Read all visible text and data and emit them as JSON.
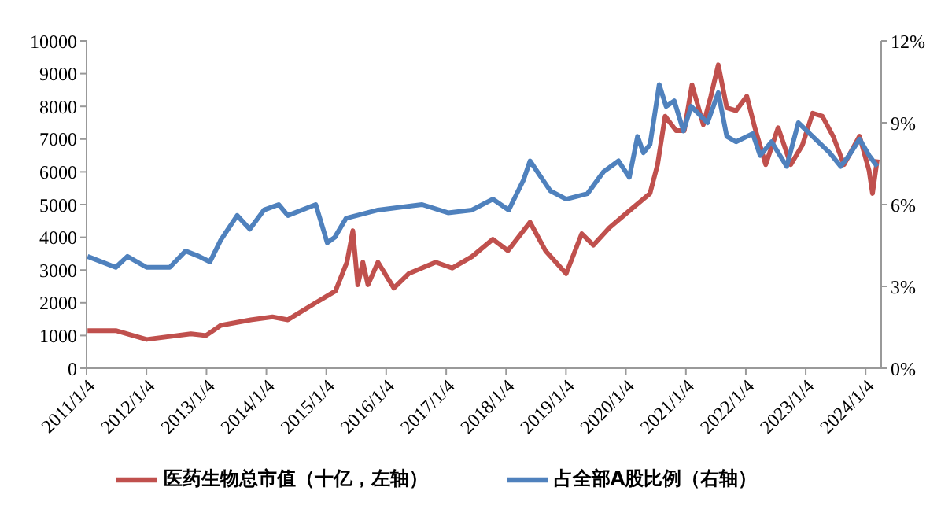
{
  "chart_data": {
    "type": "line",
    "xlim": [
      "2011-01-04",
      "2024-04-08"
    ],
    "xticks": [
      {
        "value": "2011-01-04",
        "label": "2011/1/4"
      },
      {
        "value": "2012-01-04",
        "label": "2012/1/4"
      },
      {
        "value": "2013-01-04",
        "label": "2013/1/4"
      },
      {
        "value": "2014-01-04",
        "label": "2014/1/4"
      },
      {
        "value": "2015-01-04",
        "label": "2015/1/4"
      },
      {
        "value": "2016-01-04",
        "label": "2016/1/4"
      },
      {
        "value": "2017-01-04",
        "label": "2017/1/4"
      },
      {
        "value": "2018-01-04",
        "label": "2018/1/4"
      },
      {
        "value": "2019-01-04",
        "label": "2019/1/4"
      },
      {
        "value": "2020-01-04",
        "label": "2020/1/4"
      },
      {
        "value": "2021-01-04",
        "label": "2021/1/4"
      },
      {
        "value": "2022-01-04",
        "label": "2022/1/4"
      },
      {
        "value": "2023-01-04",
        "label": "2023/1/4"
      },
      {
        "value": "2024-01-04",
        "label": "2024/1/4"
      }
    ],
    "ylim": [
      0,
      10000
    ],
    "yticks": [
      0,
      1000,
      2000,
      3000,
      4000,
      5000,
      6000,
      7000,
      8000,
      9000,
      10000
    ],
    "y2lim": [
      0,
      12
    ],
    "y2ticks": [
      {
        "value": 0,
        "label": "0%"
      },
      {
        "value": 3,
        "label": "3%"
      },
      {
        "value": 6,
        "label": "6%"
      },
      {
        "value": 9,
        "label": "9%"
      },
      {
        "value": 12,
        "label": "12%"
      }
    ],
    "grid": false,
    "legend": "bottom",
    "series": [
      {
        "name": "医药生物总市值（十亿，左轴）",
        "color": "#c0504d",
        "x": [
          "2011-01-10",
          "2011-07-01",
          "2012-01-05",
          "2012-10-01",
          "2013-01-01",
          "2013-04-01",
          "2013-10-01",
          "2014-02-10",
          "2014-05-15",
          "2014-11-01",
          "2015-03-01",
          "2015-05-10",
          "2015-06-15",
          "2015-07-15",
          "2015-08-15",
          "2015-09-15",
          "2015-11-15",
          "2016-02-20",
          "2016-05-20",
          "2016-11-01",
          "2017-02-10",
          "2017-06-10",
          "2017-10-15",
          "2018-01-15",
          "2018-05-30",
          "2018-09-01",
          "2019-01-05",
          "2019-04-10",
          "2019-06-20",
          "2019-09-25",
          "2020-01-25",
          "2020-05-30",
          "2020-07-15",
          "2020-08-30",
          "2020-11-05",
          "2020-12-25",
          "2021-02-10",
          "2021-04-20",
          "2021-06-05",
          "2021-07-20",
          "2021-09-10",
          "2021-11-05",
          "2022-01-10",
          "2022-02-28",
          "2022-05-05",
          "2022-07-20",
          "2022-10-05",
          "2022-12-15",
          "2023-02-15",
          "2023-04-15",
          "2023-06-20",
          "2023-08-25",
          "2023-11-28",
          "2024-01-25",
          "2024-02-15",
          "2024-03-15"
        ],
        "values": [
          1150,
          1150,
          880,
          1050,
          1000,
          1310,
          1480,
          1570,
          1480,
          2000,
          2360,
          3240,
          4200,
          2550,
          3240,
          2550,
          3240,
          2450,
          2890,
          3240,
          3060,
          3410,
          3940,
          3590,
          4460,
          3590,
          2890,
          4110,
          3760,
          4290,
          4810,
          5340,
          6220,
          7700,
          7260,
          7260,
          8660,
          7440,
          8310,
          9270,
          7960,
          7870,
          8310,
          7350,
          6220,
          7350,
          6220,
          6820,
          7790,
          7700,
          7090,
          6220,
          7090,
          6040,
          5340,
          6380
        ]
      },
      {
        "name": "占全部A股比例（右轴）",
        "color": "#4f81bd",
        "axis": "y2",
        "x": [
          "2011-01-10",
          "2011-07-01",
          "2011-09-10",
          "2012-01-05",
          "2012-05-25",
          "2012-08-30",
          "2012-11-20",
          "2013-01-25",
          "2013-04-01",
          "2013-07-10",
          "2013-09-25",
          "2013-12-20",
          "2014-03-20",
          "2014-05-15",
          "2014-11-01",
          "2015-01-10",
          "2015-02-25",
          "2015-05-05",
          "2015-11-15",
          "2016-08-10",
          "2017-01-15",
          "2017-06-10",
          "2017-10-15",
          "2018-01-20",
          "2018-04-20",
          "2018-05-30",
          "2018-07-25",
          "2018-10-01",
          "2019-01-05",
          "2019-05-15",
          "2019-08-20",
          "2019-11-20",
          "2020-01-25",
          "2020-03-15",
          "2020-04-20",
          "2020-05-30",
          "2020-07-05",
          "2020-07-25",
          "2020-09-05",
          "2020-10-25",
          "2020-12-20",
          "2021-02-05",
          "2021-05-15",
          "2021-07-20",
          "2021-09-10",
          "2021-11-05",
          "2022-02-15",
          "2022-04-01",
          "2022-06-10",
          "2022-09-10",
          "2022-11-20",
          "2023-02-15",
          "2023-05-30",
          "2023-08-05",
          "2023-09-25",
          "2023-11-28",
          "2024-01-25",
          "2024-03-15"
        ],
        "values": [
          4.1,
          3.7,
          4.1,
          3.7,
          3.7,
          4.3,
          4.1,
          3.9,
          4.7,
          5.6,
          5.1,
          5.8,
          6.0,
          5.6,
          6.0,
          4.6,
          4.8,
          5.5,
          5.8,
          6.0,
          5.7,
          5.8,
          6.2,
          5.8,
          6.9,
          7.6,
          7.1,
          6.5,
          6.2,
          6.4,
          7.2,
          7.6,
          7.0,
          8.5,
          7.9,
          8.2,
          9.6,
          10.4,
          9.6,
          9.8,
          8.7,
          9.6,
          9.0,
          10.1,
          8.5,
          8.3,
          8.6,
          7.8,
          8.3,
          7.4,
          9.0,
          8.5,
          7.9,
          7.4,
          7.8,
          8.4,
          7.8,
          7.4
        ]
      }
    ]
  }
}
